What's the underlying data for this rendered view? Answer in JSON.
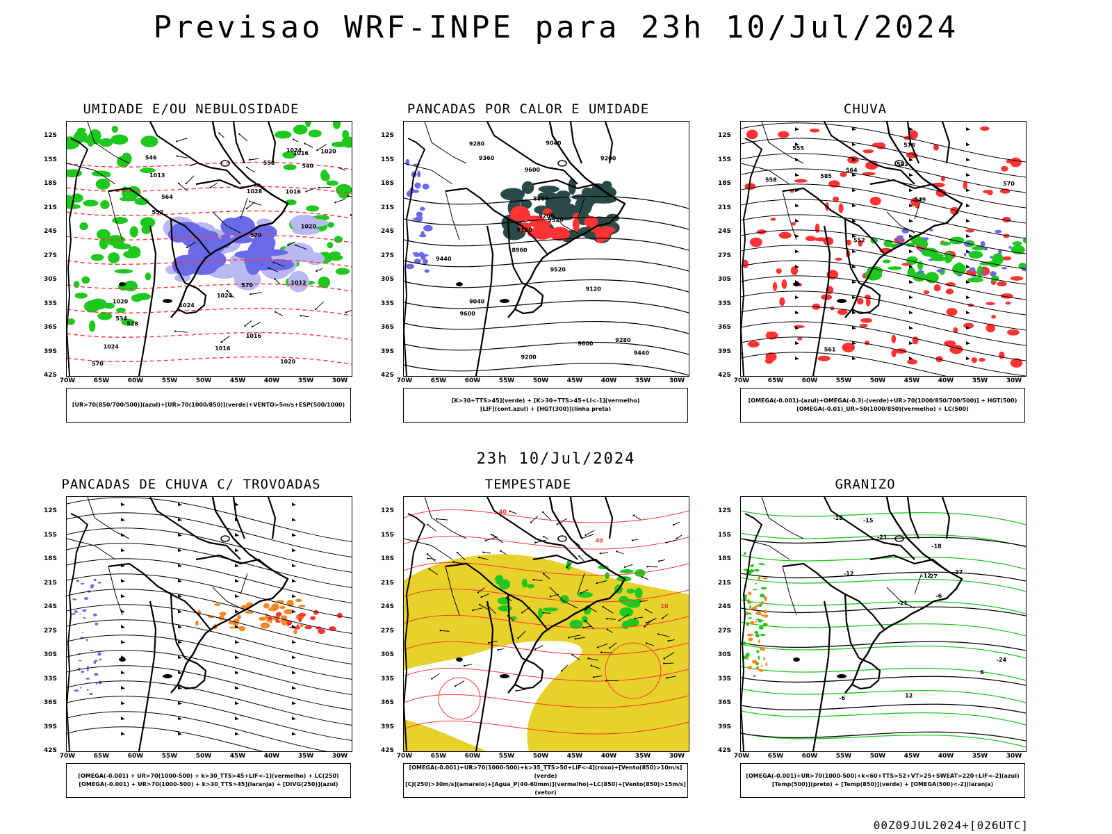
{
  "title": "Previsao WRF-INPE  para 23h 10/Jul/2024",
  "subtitle": "23h 10/Jul/2024",
  "footer": "00Z09JUL2024+[026UTC]",
  "lat_labels": [
    "12S",
    "15S",
    "18S",
    "21S",
    "24S",
    "27S",
    "30S",
    "33S",
    "36S",
    "39S",
    "42S"
  ],
  "lon_labels": [
    "70W",
    "65W",
    "60W",
    "55W",
    "50W",
    "45W",
    "40W",
    "35W",
    "30W"
  ],
  "colors": {
    "blue": "#6a6ae8",
    "light_blue": "#b9b9f2",
    "green": "#1ec81e",
    "red": "#ff3333",
    "dark_teal": "#2a4a48",
    "orange": "#f08a24",
    "yellow": "#e6d22a",
    "contour": "#000000"
  },
  "panels": [
    {
      "id": "umidade",
      "title": "UMIDADE E/OU NEBULOSIDADE",
      "legend": [
        "[UR>70(850/700/500)](azul)+[UR>70(1000/850)](verde)+VENTO>5m/s+ESP(500/1000)"
      ],
      "labels": [
        "1016",
        "1013",
        "1020",
        "1012",
        "1016",
        "1016",
        "1024",
        "1020",
        "1016",
        "1020",
        "1024",
        "1028",
        "1024",
        "1024",
        "1020",
        "570",
        "570",
        "570",
        "564",
        "558",
        "552",
        "546",
        "540",
        "534",
        "528"
      ]
    },
    {
      "id": "pancadas-calor",
      "title": "PANCADAS POR CALOR E UMIDADE",
      "legend": [
        "[K>30+TTS>45](verde) + [K>30+TTS>45+LI<-1](vermelho)",
        "[LIF](cont.azul) + [HGT(300)](linha preta)"
      ],
      "labels": [
        "9600",
        "9600",
        "9520",
        "9440",
        "9360",
        "9280",
        "9200",
        "9120",
        "9040",
        "9520",
        "9600",
        "9440",
        "9200",
        "9120",
        "9040",
        "8960",
        "8880",
        "9200",
        "9280"
      ]
    },
    {
      "id": "chuva",
      "title": "CHUVA",
      "legend": [
        "[OMEGA(-0.001)-(azul)+OMEGA(-0.3)-(verde)+UR>70(1000/850/700/500)] + HGT(500)",
        "[OMEGA(-0.01)_UR>50(1000/850)(vermelho) + LC(500)"
      ],
      "labels": [
        "582",
        "576",
        "570",
        "564",
        "561",
        "558",
        "555",
        "552",
        "549",
        "585"
      ]
    },
    {
      "id": "pancadas-trovoadas",
      "title": "PANCADAS DE CHUVA C/ TROVOADAS",
      "legend": [
        "[OMEGA(-0.001) + UR>70(1000-500) + k>30_TTS>45+LIF<-1](vermelho) + LC(250)",
        "[OMEGA(-0.001) + UR>70(1000-500) + k>30_TTS>45](laranja) + [DIVG(250)](azul)"
      ],
      "labels": []
    },
    {
      "id": "tempestade",
      "title": "TEMPESTADE",
      "legend": [
        "[OMEGA(-0.001)+UR>70(1000-500)+k>35_TTS>50+LIF<-4](roxo)+[Vento(850)>10m/s](verde)",
        "[CJ(250)>30m/s](amarelo)+[Agua_P(40-60mm)](vermelho)+LC(850)+[Vento(850)>15m/s](vetor)"
      ],
      "labels": [
        "40",
        "40",
        "10"
      ]
    },
    {
      "id": "granizo",
      "title": "GRANIZO",
      "legend": [
        "[OMEGA(-0.001)+UR>70(1000-500)+k<60+TTS>52+VT>25+SWEAT>220+LIF<-2](azul)",
        "[Temp(500)](preto) + [Temp(850)](verde) + [OMEGA(500)<-2](laranja)"
      ],
      "labels": [
        "-6",
        "-12",
        "-15",
        "-18",
        "-21",
        "-24",
        "-27",
        "-27",
        "-21",
        "-18",
        "-12",
        "-6",
        "12",
        "6"
      ]
    }
  ]
}
